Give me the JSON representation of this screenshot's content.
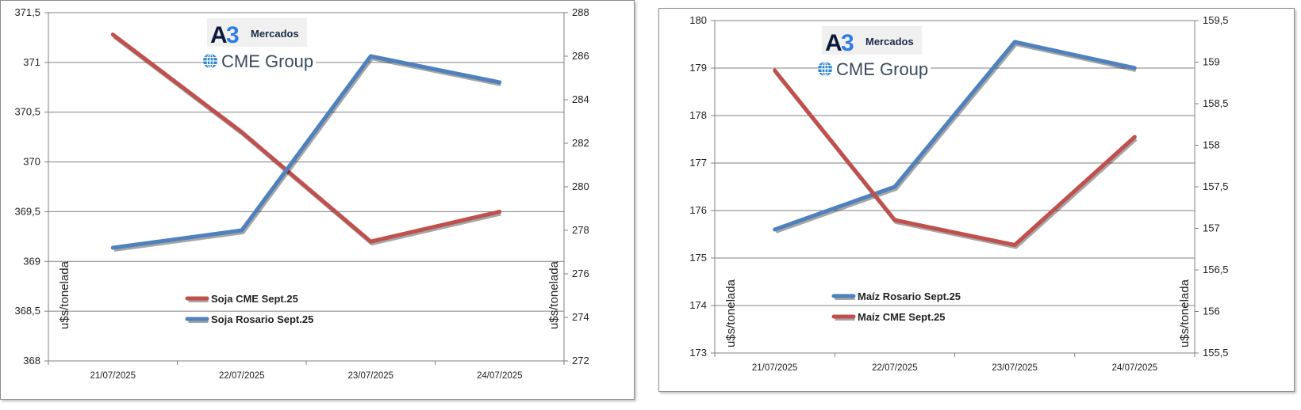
{
  "logo": {
    "a3_letter": "A",
    "a3_digit": "3",
    "mercados": "Mercados",
    "cme": "CME Group"
  },
  "colors": {
    "red": "#c0504d",
    "blue": "#4f81bd",
    "grid": "#808080",
    "a3_dark": "#0b1a3a",
    "a3_blue": "#2f7de1",
    "cme_blue": "#2f88c8"
  },
  "chart_data": [
    {
      "type": "line",
      "categories": [
        "21/07/2025",
        "22/07/2025",
        "23/07/2025",
        "24/07/2025"
      ],
      "ylabel": "u$s/tonelada",
      "y2label": "u$s/tonelada",
      "ylim": [
        368,
        371.5
      ],
      "y2lim": [
        272,
        288
      ],
      "yticks": [
        "368",
        "368,5",
        "369",
        "369,5",
        "370",
        "370,5",
        "371",
        "371,5"
      ],
      "y2ticks": [
        "272",
        "274",
        "276",
        "278",
        "280",
        "282",
        "284",
        "286",
        "288"
      ],
      "grid": true,
      "series": [
        {
          "name": "Soja CME Sept.25",
          "axis": "left",
          "color": "#c0504d",
          "values": [
            371.28,
            370.3,
            369.2,
            369.5
          ]
        },
        {
          "name": "Soja Rosario Sept.25",
          "axis": "right",
          "color": "#4f81bd",
          "values": [
            277.2,
            278.0,
            286.0,
            284.8
          ]
        }
      ],
      "legend_order": [
        0,
        1
      ]
    },
    {
      "type": "line",
      "categories": [
        "21/07/2025",
        "22/07/2025",
        "23/07/2025",
        "24/07/2025"
      ],
      "ylabel": "u$s/tonelada",
      "y2label": "u$s/tonelada",
      "ylim": [
        173,
        180
      ],
      "y2lim": [
        155.5,
        159.5
      ],
      "yticks": [
        "173",
        "174",
        "175",
        "176",
        "177",
        "178",
        "179",
        "180"
      ],
      "y2ticks": [
        "155,5",
        "156",
        "156,5",
        "157",
        "157,5",
        "158",
        "158,5",
        "159",
        "159,5"
      ],
      "grid": true,
      "series": [
        {
          "name": "Maíz Rosario Sept.25",
          "axis": "left",
          "color": "#4f81bd",
          "values": [
            175.6,
            176.5,
            179.55,
            179.0
          ]
        },
        {
          "name": "Maíz CME Sept.25",
          "axis": "right",
          "color": "#c0504d",
          "values": [
            158.9,
            157.1,
            156.8,
            158.1
          ]
        }
      ],
      "legend_order": [
        0,
        1
      ]
    }
  ]
}
